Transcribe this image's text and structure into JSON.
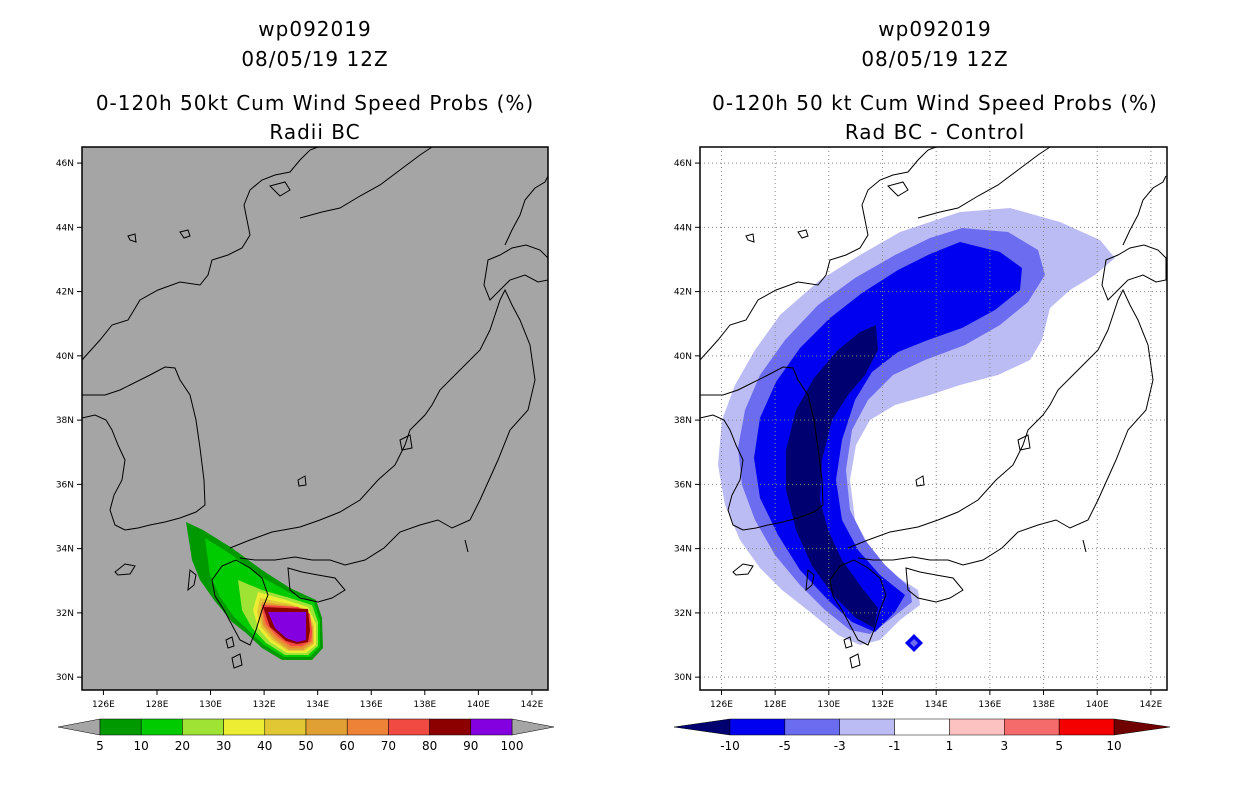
{
  "chart_data": [
    {
      "type": "map",
      "title_lines": [
        "wp092019",
        "08/05/19 12Z",
        "0-120h 50kt Cum Wind Speed Probs (%)",
        "Radii BC"
      ],
      "background_color": "#a5a5a5",
      "lat_labels": [
        "46N",
        "44N",
        "42N",
        "40N",
        "38N",
        "36N",
        "34N",
        "32N",
        "30N"
      ],
      "lat_values": [
        46,
        44,
        42,
        40,
        38,
        36,
        34,
        32,
        30
      ],
      "lon_labels": [
        "126E",
        "128E",
        "130E",
        "132E",
        "134E",
        "136E",
        "138E",
        "140E",
        "142E"
      ],
      "lon_values": [
        126,
        128,
        130,
        132,
        134,
        136,
        138,
        140,
        142
      ],
      "xlim": [
        125.2,
        142.6
      ],
      "ylim": [
        29.6,
        46.5
      ],
      "grid": false,
      "colorbar": {
        "labels": [
          "5",
          "10",
          "20",
          "30",
          "40",
          "50",
          "60",
          "70",
          "80",
          "90",
          "100"
        ],
        "colors": [
          "#009a00",
          "#00cb00",
          "#9fe335",
          "#eded33",
          "#e2c734",
          "#e0a034",
          "#ee8236",
          "#f04a43",
          "#8c0000",
          "#8500e1"
        ],
        "end_colors": [
          "#a5a5a5",
          "#a5a5a5"
        ]
      }
    },
    {
      "type": "map",
      "title_lines": [
        "wp092019",
        "08/05/19 12Z",
        "0-120h 50 kt Cum Wind Speed Probs (%)",
        "Rad BC - Control"
      ],
      "background_color": "#ffffff",
      "lat_labels": [
        "46N",
        "44N",
        "42N",
        "40N",
        "38N",
        "36N",
        "34N",
        "32N",
        "30N"
      ],
      "lat_values": [
        46,
        44,
        42,
        40,
        38,
        36,
        34,
        32,
        30
      ],
      "lon_labels": [
        "126E",
        "128E",
        "130E",
        "132E",
        "134E",
        "136E",
        "138E",
        "140E",
        "142E"
      ],
      "lon_values": [
        126,
        128,
        130,
        132,
        134,
        136,
        138,
        140,
        142
      ],
      "xlim": [
        125.2,
        142.6
      ],
      "ylim": [
        29.6,
        46.5
      ],
      "grid": true,
      "colorbar": {
        "labels": [
          "-10",
          "-5",
          "-3",
          "-1",
          "1",
          "3",
          "5",
          "10"
        ],
        "colors": [
          "#0000f0",
          "#6c6cf0",
          "#bcbcf5",
          "#ffffff",
          "#fcc2c2",
          "#f56b6b",
          "#f50000"
        ],
        "end_colors": [
          "#000070",
          "#700000"
        ]
      }
    }
  ]
}
